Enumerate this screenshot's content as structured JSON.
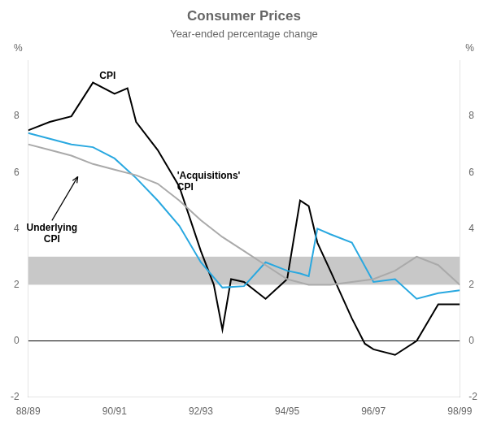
{
  "chart_data": {
    "type": "line",
    "title": "Consumer Prices",
    "subtitle": "Year-ended percentage change",
    "ylabel": "%",
    "y2label": "%",
    "xlim": [
      0,
      10
    ],
    "xticks": [
      {
        "value": 0,
        "label": "88/89"
      },
      {
        "value": 2,
        "label": "90/91"
      },
      {
        "value": 4,
        "label": "92/93"
      },
      {
        "value": 6,
        "label": "94/95"
      },
      {
        "value": 8,
        "label": "96/97"
      },
      {
        "value": 10,
        "label": "98/99"
      }
    ],
    "ylim": [
      -2,
      10
    ],
    "yticks": [
      -2,
      0,
      2,
      4,
      6,
      8
    ],
    "y2lim": [
      -2,
      10
    ],
    "y2ticks": [
      -2,
      0,
      2,
      4,
      6,
      8
    ],
    "grid": false,
    "band": {
      "low": 2,
      "high": 3,
      "color": "#c8c8c8"
    },
    "hlines": [
      0
    ],
    "series": [
      {
        "color": "#aaaaaa",
        "x": [
          0,
          0.5,
          1.0,
          1.5,
          2.0,
          2.5,
          3.0,
          3.5,
          4.0,
          4.5,
          5.0,
          5.5,
          6.0,
          6.5,
          7.0,
          7.5,
          8.0,
          8.5,
          9.0,
          9.5,
          10.0
        ],
        "values": [
          7.0,
          6.8,
          6.6,
          6.3,
          6.1,
          5.9,
          5.6,
          5.0,
          4.3,
          3.7,
          3.2,
          2.7,
          2.2,
          2.0,
          2.0,
          2.1,
          2.2,
          2.5,
          3.0,
          2.7,
          2.0
        ]
      },
      {
        "color": "#29a8e0",
        "x": [
          0,
          0.5,
          1.0,
          1.5,
          2.0,
          2.5,
          3.0,
          3.5,
          4.0,
          4.5,
          5.0,
          5.5,
          6.0,
          6.3,
          6.5,
          6.7,
          7.0,
          7.5,
          8.0,
          8.5,
          9.0,
          9.5,
          10.0
        ],
        "values": [
          7.4,
          7.2,
          7.0,
          6.9,
          6.5,
          5.8,
          5.0,
          4.1,
          2.8,
          1.9,
          1.95,
          2.8,
          2.5,
          2.4,
          2.3,
          4.0,
          3.8,
          3.5,
          2.1,
          2.2,
          1.5,
          1.7,
          1.8
        ]
      },
      {
        "color": "#000000",
        "x": [
          0,
          0.5,
          1.0,
          1.5,
          2.0,
          2.3,
          2.5,
          3.0,
          3.5,
          4.0,
          4.3,
          4.5,
          4.7,
          5.0,
          5.5,
          6.0,
          6.3,
          6.5,
          6.7,
          7.0,
          7.5,
          7.8,
          8.0,
          8.5,
          9.0,
          9.5,
          10.0
        ],
        "values": [
          7.5,
          7.8,
          8.0,
          9.2,
          8.8,
          9.0,
          7.8,
          6.8,
          5.5,
          3.2,
          2.0,
          0.4,
          2.2,
          2.1,
          1.5,
          2.2,
          5.0,
          4.8,
          3.5,
          2.5,
          0.8,
          -0.1,
          -0.3,
          -0.5,
          0.0,
          1.3,
          1.3
        ]
      }
    ],
    "annotations": [
      {
        "text": "CPI",
        "x": 1.65,
        "y": 9.25
      },
      {
        "text": "Underlying\nCPI",
        "x": 0.55,
        "y": 4.2,
        "arrow_to": [
          1.15,
          5.85
        ]
      },
      {
        "text": "'Acquisitions'\nCPI",
        "x": 3.45,
        "y": 5.3
      }
    ]
  }
}
